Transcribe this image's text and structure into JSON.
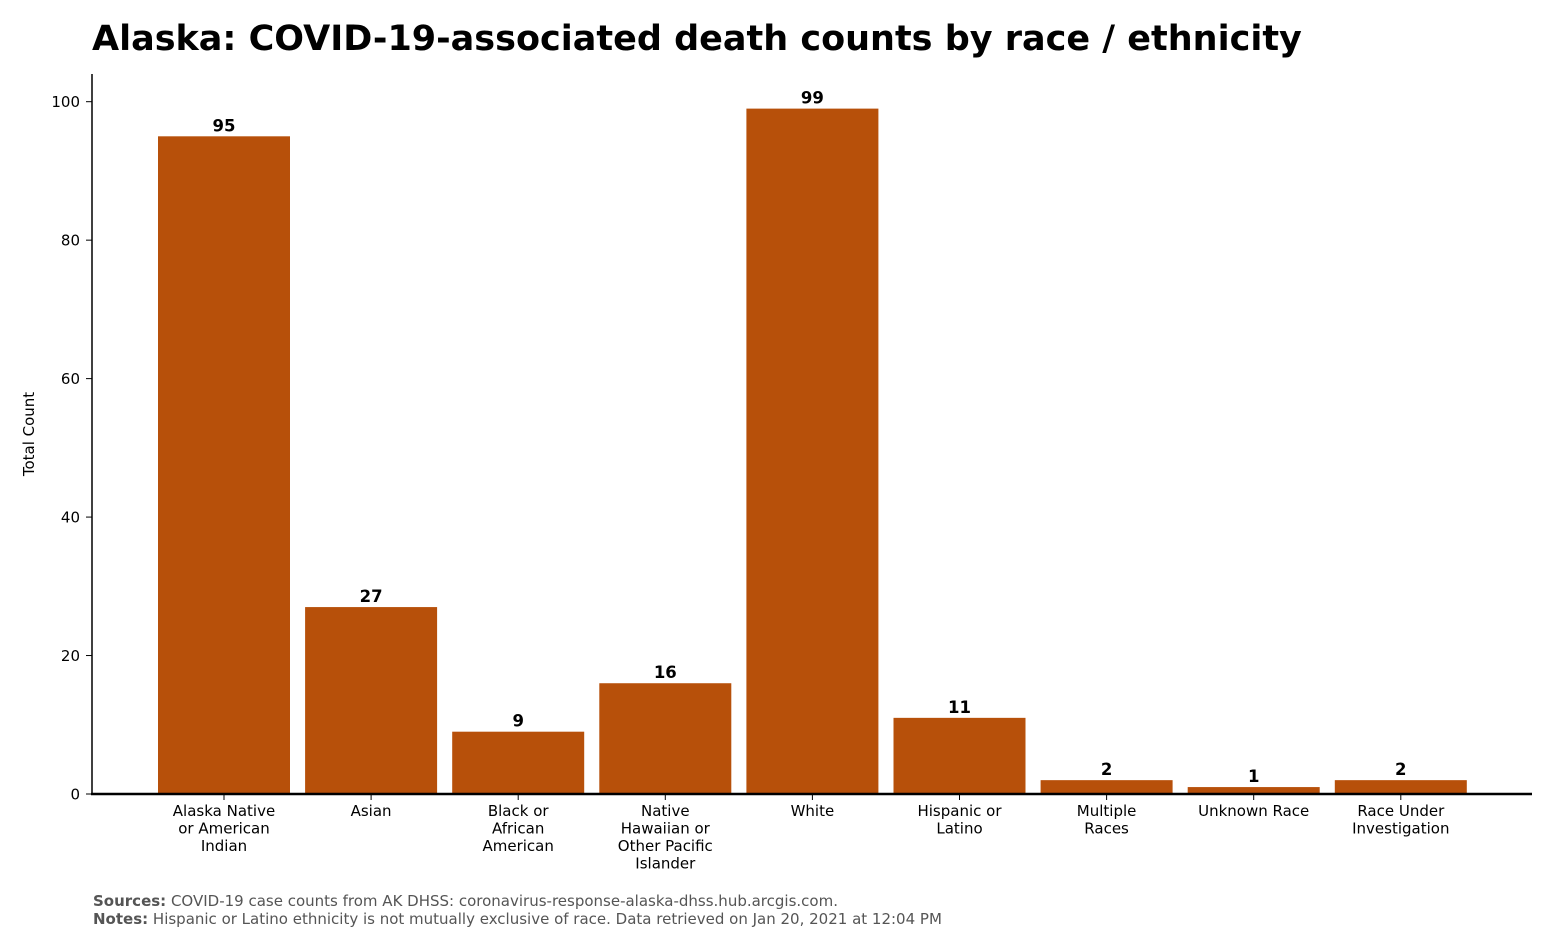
{
  "chart_data": {
    "type": "bar",
    "title": "Alaska: COVID-19-associated death counts by race / ethnicity",
    "xlabel": "",
    "ylabel": "Total Count",
    "ylim": [
      0,
      104
    ],
    "yticks": [
      0,
      20,
      40,
      60,
      80,
      100
    ],
    "grid": false,
    "categories": [
      "Alaska Native or American Indian",
      "Asian",
      "Black or African American",
      "Native Hawaiian or Other Pacific Islander",
      "White",
      "Hispanic or Latino",
      "Multiple Races",
      "Unknown Race",
      "Race Under Investigation"
    ],
    "category_lines": [
      [
        "Alaska Native",
        "or American",
        "Indian"
      ],
      [
        "Asian"
      ],
      [
        "Black or",
        "African",
        "American"
      ],
      [
        "Native",
        "Hawaiian or",
        "Other Pacific",
        "Islander"
      ],
      [
        "White"
      ],
      [
        "Hispanic or",
        "Latino"
      ],
      [
        "Multiple",
        "Races"
      ],
      [
        "Unknown Race"
      ],
      [
        "Race Under",
        "Investigation"
      ]
    ],
    "values": [
      95,
      27,
      9,
      16,
      99,
      11,
      2,
      1,
      2
    ],
    "bar_color": "#b7500a"
  },
  "footer": {
    "sources_label": "Sources:",
    "sources_text": " COVID-19 case counts from AK DHSS: coronavirus-response-alaska-dhss.hub.arcgis.com.",
    "notes_label": "Notes:",
    "notes_text": " Hispanic or Latino ethnicity is not mutually exclusive of race. Data retrieved on Jan 20, 2021 at 12:04 PM"
  }
}
